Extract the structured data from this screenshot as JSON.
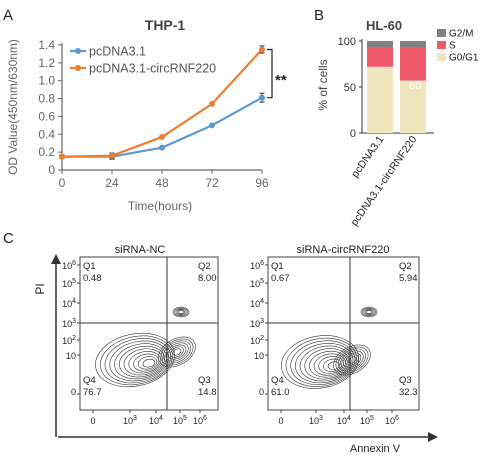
{
  "colors": {
    "pcdna": "#5b9bd5",
    "circ": "#ed7d31",
    "g2m": "#808080",
    "s": "#ee5a6a",
    "g0g1": "#efe6c0",
    "axis": "#333333",
    "contour": "#333333",
    "text": "#222222",
    "muted": "#555555"
  },
  "chart_data": [
    {
      "type": "line",
      "panel_label": "A",
      "title": "THP-1",
      "xlabel": "Time(hours)",
      "ylabel": "OD Value(450nm/630nm)",
      "x": [
        0,
        24,
        48,
        72,
        96
      ],
      "xticks": [
        "0",
        "24",
        "48",
        "72",
        "96"
      ],
      "yticks": [
        "0",
        "0.2",
        "0.4",
        "0.6",
        "0.8",
        "1.0",
        "1.2",
        "1.4"
      ],
      "xlim": [
        0,
        96
      ],
      "ylim": [
        0,
        1.4
      ],
      "annotation": "**",
      "series": [
        {
          "name": "pcDNA3.1",
          "values": [
            0.15,
            0.15,
            0.25,
            0.5,
            0.81
          ],
          "error": [
            0.02,
            0.03,
            0.01,
            0.01,
            0.05
          ]
        },
        {
          "name": "pcDNA3.1-circRNF220",
          "values": [
            0.15,
            0.16,
            0.37,
            0.74,
            1.35
          ],
          "error": [
            0.02,
            0.03,
            0.01,
            0.01,
            0.04
          ]
        }
      ]
    },
    {
      "type": "bar",
      "stacked": true,
      "panel_label": "B",
      "title": "HL-60",
      "ylabel": "% of cells",
      "categories": [
        "pcDNA3.1",
        "pcDNA3.1-circRNF220"
      ],
      "yticks": [
        "0",
        "50",
        "100"
      ],
      "ylim": [
        0,
        100
      ],
      "legend_position": "top-right",
      "series": [
        {
          "name": "G0/G1",
          "values": [
            72,
            57
          ]
        },
        {
          "name": "S",
          "values": [
            21,
            36
          ]
        },
        {
          "name": "G2/M",
          "values": [
            7,
            7
          ]
        }
      ],
      "bar_label": "60"
    },
    {
      "type": "scatter",
      "panel_label": "C",
      "ylabel": "PI",
      "xlabel": "Annexin V",
      "yticks": [
        "0",
        "10",
        "10",
        "10",
        "10",
        "10",
        "10"
      ],
      "ytick_exponents": [
        "",
        "",
        "2",
        "3",
        "4",
        "5",
        "6"
      ],
      "xticks": [
        "0",
        "10",
        "10",
        "10",
        "10"
      ],
      "xtick_exponents": [
        "",
        "3",
        "4",
        "5",
        "6"
      ],
      "plots": [
        {
          "title": "siRNA-NC",
          "quadrants": [
            {
              "label": "Q1",
              "value": "0.48"
            },
            {
              "label": "Q2",
              "value": "8.00"
            },
            {
              "label": "Q3",
              "value": "14.8"
            },
            {
              "label": "Q4",
              "value": "76.7"
            }
          ]
        },
        {
          "title": "siRNA-circRNF220",
          "quadrants": [
            {
              "label": "Q1",
              "value": "0.67"
            },
            {
              "label": "Q2",
              "value": "5.94"
            },
            {
              "label": "Q3",
              "value": "32.3"
            },
            {
              "label": "Q4",
              "value": "61.0"
            }
          ]
        }
      ]
    }
  ]
}
